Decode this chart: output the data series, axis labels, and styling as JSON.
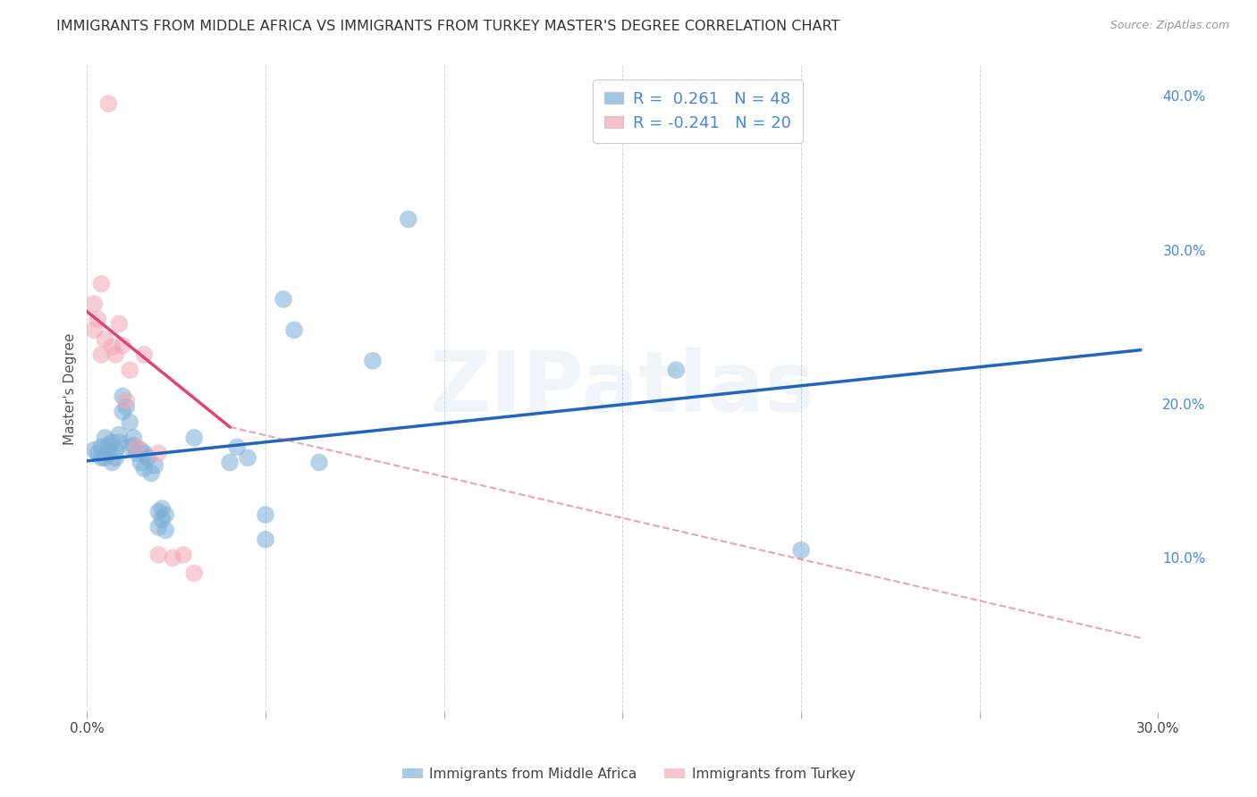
{
  "title": "IMMIGRANTS FROM MIDDLE AFRICA VS IMMIGRANTS FROM TURKEY MASTER'S DEGREE CORRELATION CHART",
  "source": "Source: ZipAtlas.com",
  "ylabel": "Master's Degree",
  "watermark": "ZIPatlas",
  "xaxis": {
    "min": 0.0,
    "max": 0.3
  },
  "yaxis": {
    "min": 0.0,
    "max": 0.42
  },
  "blue_line": {
    "x0": 0.0,
    "y0": 0.163,
    "x1": 0.295,
    "y1": 0.235
  },
  "pink_line_solid": {
    "x0": 0.0,
    "y0": 0.26,
    "x1": 0.04,
    "y1": 0.185
  },
  "pink_line_dashed": {
    "x0": 0.04,
    "y0": 0.185,
    "x1": 0.295,
    "y1": 0.048
  },
  "blue_scatter": [
    [
      0.002,
      0.17
    ],
    [
      0.003,
      0.168
    ],
    [
      0.004,
      0.172
    ],
    [
      0.004,
      0.165
    ],
    [
      0.005,
      0.178
    ],
    [
      0.005,
      0.165
    ],
    [
      0.006,
      0.173
    ],
    [
      0.006,
      0.168
    ],
    [
      0.007,
      0.175
    ],
    [
      0.007,
      0.162
    ],
    [
      0.008,
      0.17
    ],
    [
      0.008,
      0.165
    ],
    [
      0.009,
      0.18
    ],
    [
      0.009,
      0.175
    ],
    [
      0.01,
      0.195
    ],
    [
      0.01,
      0.205
    ],
    [
      0.011,
      0.198
    ],
    [
      0.012,
      0.188
    ],
    [
      0.012,
      0.172
    ],
    [
      0.013,
      0.178
    ],
    [
      0.013,
      0.173
    ],
    [
      0.014,
      0.168
    ],
    [
      0.015,
      0.17
    ],
    [
      0.015,
      0.162
    ],
    [
      0.016,
      0.168
    ],
    [
      0.016,
      0.158
    ],
    [
      0.017,
      0.165
    ],
    [
      0.018,
      0.155
    ],
    [
      0.019,
      0.16
    ],
    [
      0.02,
      0.13
    ],
    [
      0.02,
      0.12
    ],
    [
      0.021,
      0.125
    ],
    [
      0.021,
      0.132
    ],
    [
      0.022,
      0.128
    ],
    [
      0.022,
      0.118
    ],
    [
      0.03,
      0.178
    ],
    [
      0.04,
      0.162
    ],
    [
      0.042,
      0.172
    ],
    [
      0.045,
      0.165
    ],
    [
      0.05,
      0.128
    ],
    [
      0.05,
      0.112
    ],
    [
      0.055,
      0.268
    ],
    [
      0.058,
      0.248
    ],
    [
      0.065,
      0.162
    ],
    [
      0.08,
      0.228
    ],
    [
      0.09,
      0.32
    ],
    [
      0.165,
      0.222
    ],
    [
      0.2,
      0.105
    ]
  ],
  "pink_scatter": [
    [
      0.002,
      0.265
    ],
    [
      0.002,
      0.248
    ],
    [
      0.003,
      0.255
    ],
    [
      0.004,
      0.278
    ],
    [
      0.004,
      0.232
    ],
    [
      0.005,
      0.242
    ],
    [
      0.006,
      0.395
    ],
    [
      0.007,
      0.237
    ],
    [
      0.008,
      0.232
    ],
    [
      0.009,
      0.252
    ],
    [
      0.01,
      0.238
    ],
    [
      0.011,
      0.202
    ],
    [
      0.012,
      0.222
    ],
    [
      0.014,
      0.172
    ],
    [
      0.016,
      0.232
    ],
    [
      0.02,
      0.168
    ],
    [
      0.02,
      0.102
    ],
    [
      0.024,
      0.1
    ],
    [
      0.027,
      0.102
    ],
    [
      0.03,
      0.09
    ]
  ],
  "blue_color": "#7aaed6",
  "pink_color": "#f4a7b5",
  "blue_scatter_alpha": 0.55,
  "pink_scatter_alpha": 0.55,
  "blue_line_color": "#2266bb",
  "pink_line_color": "#dd4477",
  "grid_color": "#cccccc",
  "background_color": "#ffffff",
  "title_fontsize": 11.5,
  "axis_label_fontsize": 11,
  "tick_fontsize": 11,
  "right_tick_color": "#4488dd",
  "legend_r_color": "#4488dd",
  "legend_n_color": "#4488dd",
  "scatter_size": 200
}
